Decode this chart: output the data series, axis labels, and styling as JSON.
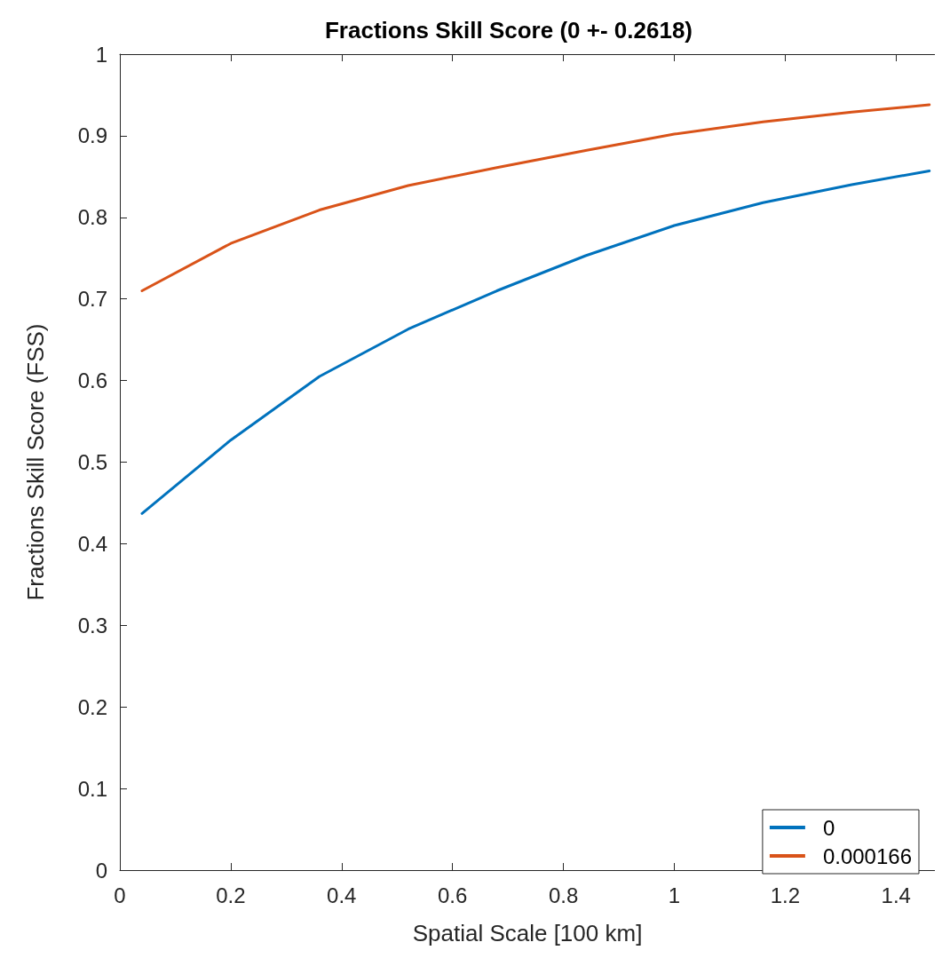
{
  "chart_data": {
    "type": "line",
    "title": "Fractions Skill Score (0 +- 0.2618)",
    "xlabel": "Spatial Scale [100 km]",
    "ylabel": "Fractions Skill Score (FSS)",
    "x": [
      0.04,
      0.2,
      0.36,
      0.52,
      0.68,
      0.84,
      1.0,
      1.16,
      1.32,
      1.46
    ],
    "series": [
      {
        "name": "0",
        "color": "#0072bd",
        "values": [
          0.437,
          0.527,
          0.605,
          0.663,
          0.71,
          0.753,
          0.79,
          0.818,
          0.84,
          0.857
        ]
      },
      {
        "name": "0.000166",
        "color": "#d95319",
        "values": [
          0.71,
          0.768,
          0.809,
          0.839,
          0.861,
          0.882,
          0.902,
          0.917,
          0.929,
          0.938
        ]
      }
    ],
    "xlim": [
      0,
      1.47
    ],
    "xticks": [
      0,
      0.2,
      0.4,
      0.6,
      0.8,
      1,
      1.2,
      1.4
    ],
    "ylim": [
      0,
      1
    ],
    "yticks": [
      0,
      0.1,
      0.2,
      0.3,
      0.4,
      0.5,
      0.6,
      0.7,
      0.8,
      0.9,
      1
    ],
    "grid": false,
    "legend": "bottom right",
    "marker": "none",
    "line_style": "solid"
  }
}
